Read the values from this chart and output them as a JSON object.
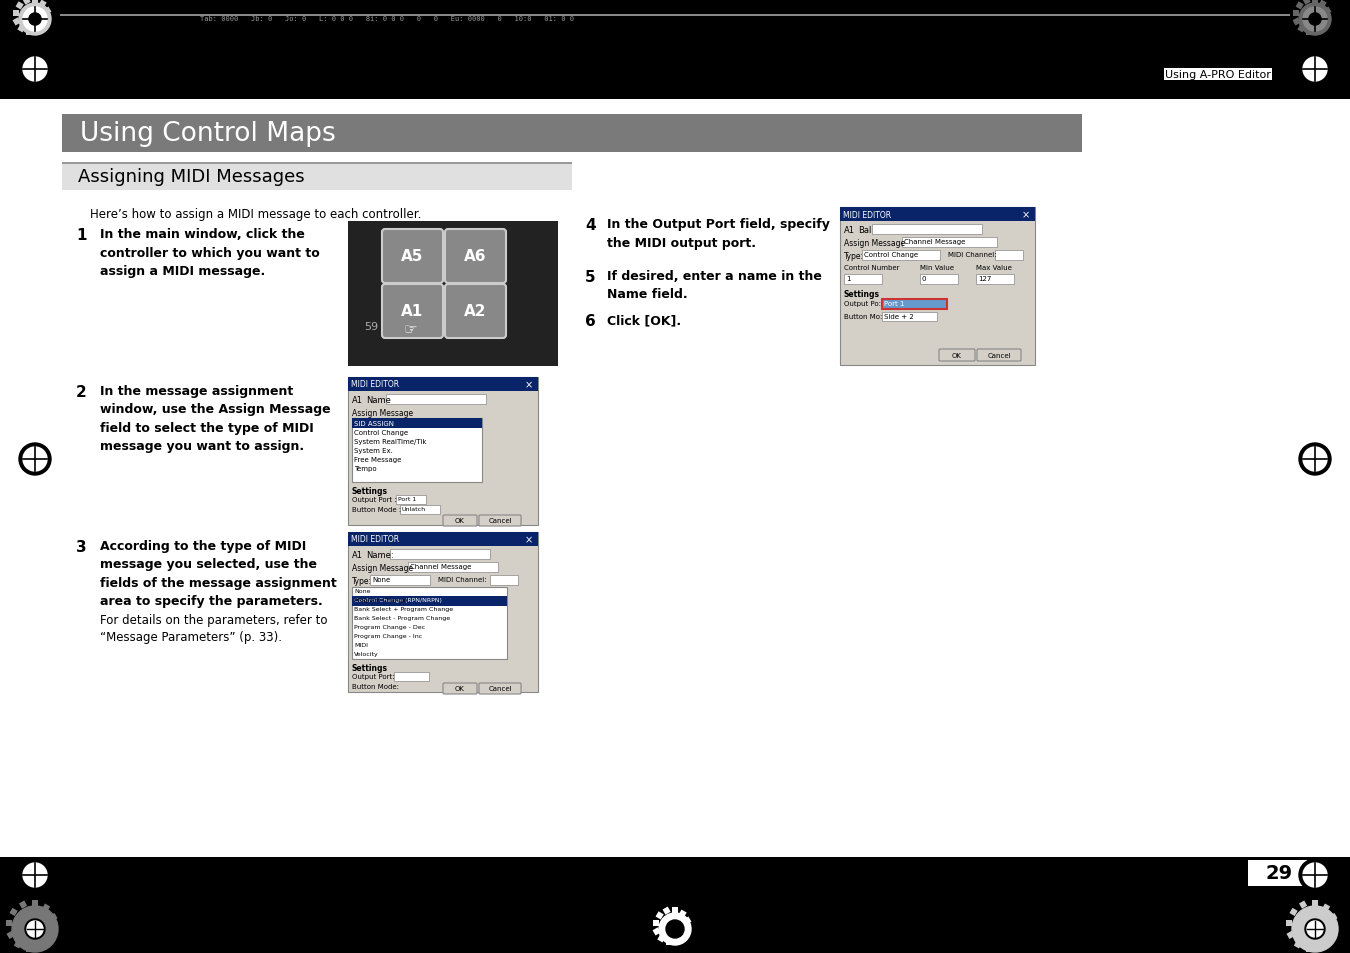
{
  "page_bg": "#ffffff",
  "header_bar_color": "#000000",
  "footer_bar_color": "#000000",
  "section_header_bg": "#7a7a7a",
  "subsection_header_bg": "#e0e0e0",
  "title_main": "Using Control Maps",
  "title_sub": "Assigning MIDI Messages",
  "header_text_color": "#ffffff",
  "subsection_text_color": "#000000",
  "body_text_color": "#000000",
  "page_number": "29",
  "top_right_label": "Using A-PRO Editor"
}
